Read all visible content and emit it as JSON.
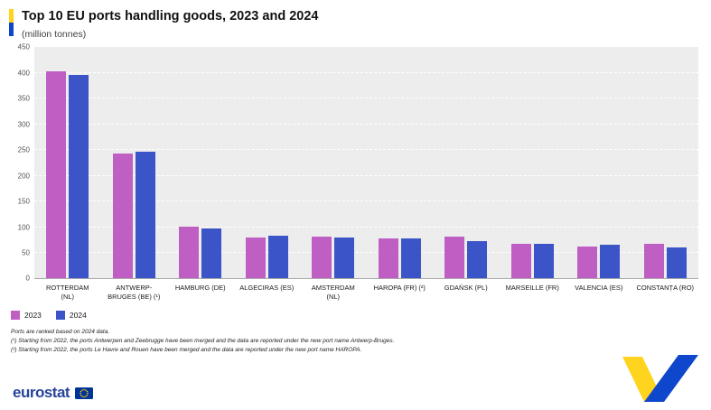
{
  "header": {
    "title": "Top 10 EU ports handling goods, 2023 and 2024",
    "subtitle": "(million tonnes)"
  },
  "chart_data": {
    "type": "bar",
    "title": "Top 10 EU ports handling goods, 2023 and 2024",
    "xlabel": "",
    "ylabel": "million tonnes",
    "ylim": [
      0,
      450
    ],
    "ytick_step": 50,
    "grid": "horizontal-dashed",
    "legend_position": "bottom-left",
    "plot_background": "#ededed",
    "categories": [
      "ROTTERDAM\n(NL)",
      "ANTWERP-\nBRUGES (BE) (¹)",
      "HAMBURG (DE)",
      "ALGECIRAS (ES)",
      "AMSTERDAM\n(NL)",
      "HAROPA (FR) (²)",
      "GDAŃSK (PL)",
      "MARSEILLE (FR)",
      "VALENCIA (ES)",
      "CONSTANȚA (RO)"
    ],
    "series": [
      {
        "name": "2023",
        "color": "#bf5fc4",
        "values": [
          403,
          243,
          101,
          80,
          82,
          78,
          81,
          68,
          63,
          68
        ]
      },
      {
        "name": "2024",
        "color": "#3b54c8",
        "values": [
          397,
          246,
          97,
          83,
          80,
          78,
          73,
          67,
          65,
          60
        ]
      }
    ]
  },
  "footnotes": [
    "Ports are ranked based on 2024 data.",
    "(¹) Starting from 2022, the ports Antwerpen and Zeebrugge have been merged and the data are reported under the new port name Antwerp-Bruges.",
    "(²) Starting from 2022, the ports Le Havre and Rouen have been merged and the data are reported under the new port name HAROPA."
  ],
  "footer": {
    "logo_text": "eurostat"
  },
  "colors": {
    "accent_yellow": "#ffd41f",
    "accent_blue": "#0e47cb",
    "series_2023": "#bf5fc4",
    "series_2024": "#3b54c8"
  }
}
